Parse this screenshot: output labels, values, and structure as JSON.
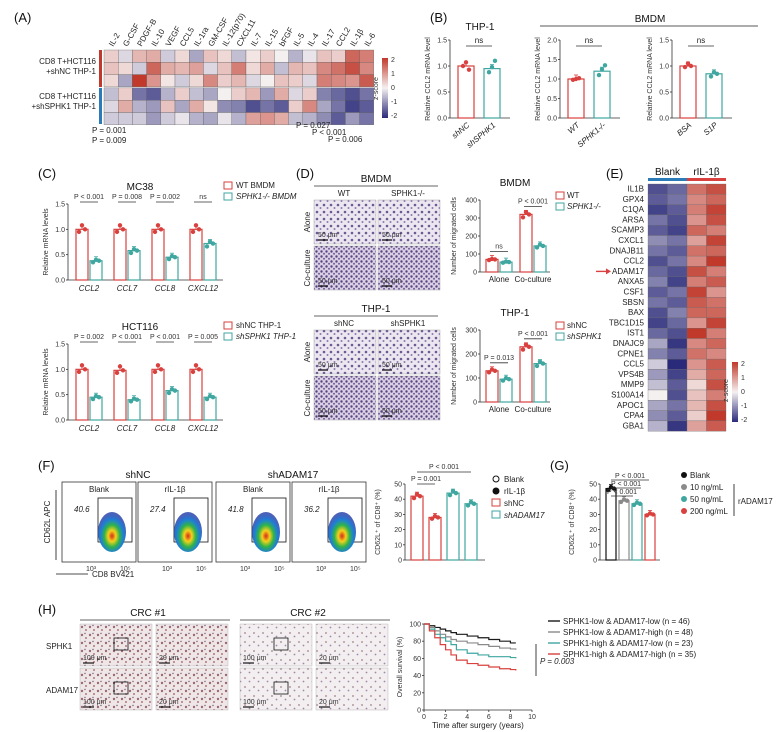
{
  "colors": {
    "red": "#d9413e",
    "teal": "#3fa6a0",
    "hi": "#c0392b",
    "lo": "#2a2a7a",
    "mid": "#f5f0f0",
    "black": "#1a1a1a",
    "gray": "#8a8a8a"
  },
  "panels": {
    "A": {
      "label": "(A)",
      "genes": [
        "IL-2",
        "G-CSF",
        "PDGF-B",
        "IL-10",
        "VEGF",
        "CCL5",
        "IL-1ra",
        "GM-CSF",
        "IL-12(p70)",
        "CXCL11",
        "IL-7",
        "IL-15",
        "bFGF",
        "IL-5",
        "IL-4",
        "IL-17",
        "CCL2",
        "IL-1β",
        "IL-6"
      ],
      "group1": "CD8 T+HCT116 +shNC THP-1",
      "group2": "CD8 T+HCT116 +shSPHK1 THP-1",
      "group1_lines": [
        "CD8 T+HCT116",
        "+shNC THP-1"
      ],
      "group2_lines": [
        "CD8 T+HCT116",
        "+shSPHK1 THP-1"
      ],
      "pvals_left": [
        "P = 0.001",
        "P = 0.009"
      ],
      "pvals_right": [
        "P = 0.027",
        "P < 0.001",
        "P = 0.006"
      ],
      "scale_label": "z-score",
      "scale_ticks": [
        "2",
        "1",
        "0",
        "-1",
        "-2"
      ],
      "z": [
        [
          0.3,
          -0.2,
          0.5,
          0.6,
          -0.3,
          0.2,
          -0.6,
          0.4,
          0.2,
          -0.4,
          0.1,
          0.3,
          0.0,
          -0.5,
          -0.1,
          0.4,
          0.3,
          1.2,
          1.0
        ],
        [
          0.4,
          0.2,
          -0.3,
          1.2,
          0.6,
          0.5,
          0.7,
          -0.2,
          0.4,
          1.0,
          0.2,
          0.6,
          -0.4,
          0.5,
          0.4,
          0.9,
          1.1,
          1.4,
          0.9
        ],
        [
          0.2,
          -0.6,
          1.6,
          0.8,
          0.1,
          -0.3,
          0.2,
          0.9,
          0.3,
          0.5,
          -0.2,
          0.0,
          0.4,
          0.3,
          -0.2,
          1.0,
          0.9,
          0.8,
          1.3
        ],
        [
          -0.4,
          0.3,
          -1.0,
          -1.2,
          -0.5,
          0.3,
          -0.4,
          -0.6,
          0.0,
          0.3,
          0.5,
          -0.7,
          0.6,
          -0.2,
          0.3,
          -0.9,
          -1.1,
          -1.3,
          -1.0
        ],
        [
          -0.2,
          0.6,
          -0.5,
          -0.7,
          0.4,
          -0.6,
          0.6,
          0.1,
          -0.8,
          -0.9,
          -1.3,
          -1.0,
          -1.2,
          0.3,
          0.9,
          -0.6,
          -1.0,
          -1.4,
          -1.2
        ],
        [
          -0.3,
          -0.3,
          -0.3,
          -0.7,
          -0.3,
          -0.1,
          -0.5,
          -0.6,
          -0.1,
          -0.5,
          0.7,
          0.8,
          0.6,
          -0.4,
          -0.5,
          -0.8,
          -1.2,
          -0.7,
          -1.0
        ]
      ]
    },
    "B": {
      "label": "(B)",
      "ylabel": "Relative CCL2 mRNA level",
      "bmdm_label": "BMDM",
      "sub": [
        {
          "title": "THP-1",
          "cats": [
            "shNC",
            "shSPHK1"
          ],
          "values": [
            1.0,
            0.95
          ],
          "points": [
            [
              1.0,
              1.07,
              0.93
            ],
            [
              0.88,
              0.98,
              1.1
            ]
          ],
          "ns": "ns",
          "ticks": [
            "0.0",
            "0.5",
            "1.0",
            "1.5"
          ]
        },
        {
          "title": "",
          "cats": [
            "WT",
            "SPHK1-/-"
          ],
          "values": [
            1.0,
            1.2
          ],
          "points": [
            [
              0.98,
              1.0,
              1.02
            ],
            [
              1.1,
              1.25,
              1.35
            ]
          ],
          "ns": "ns",
          "ticks": [
            "0.0",
            "0.5",
            "1.0",
            "1.5",
            "2.0"
          ]
        },
        {
          "title": "",
          "cats": [
            "BSA",
            "S1P"
          ],
          "values": [
            1.0,
            0.85
          ],
          "points": [
            [
              0.98,
              1.05,
              1.0
            ],
            [
              0.8,
              0.88,
              0.85
            ]
          ],
          "ns": "ns",
          "ticks": [
            "0.0",
            "0.5",
            "1.0",
            "1.5"
          ]
        }
      ]
    },
    "C": {
      "label": "(C)",
      "ylabel": "Relative mRNA levels",
      "cats": [
        "CCL2",
        "CCL7",
        "CCL8",
        "CXCL12"
      ],
      "plots": [
        {
          "title": "MC38",
          "legend": [
            "WT BMDM",
            "SPHK1-/- BMDM"
          ],
          "a": [
            1.0,
            1.0,
            1.0,
            1.0
          ],
          "b": [
            0.38,
            0.58,
            0.45,
            0.72
          ],
          "pvals": [
            "P < 0.001",
            "P = 0.008",
            "P = 0.002",
            "ns"
          ]
        },
        {
          "title": "HCT116",
          "legend": [
            "shNC THP-1",
            "shSPHK1 THP-1"
          ],
          "a": [
            1.0,
            0.98,
            1.0,
            1.0
          ],
          "b": [
            0.45,
            0.4,
            0.58,
            0.45
          ],
          "pvals": [
            "P = 0.002",
            "P < 0.001",
            "P < 0.001",
            "P = 0.005"
          ]
        }
      ],
      "ticks": [
        "0.0",
        "0.5",
        "1.0",
        "1.5"
      ]
    },
    "D": {
      "label": "(D)",
      "top_title": "BMDM",
      "bottom_title": "THP-1",
      "top_cols": [
        "WT",
        "SPHK1-/-"
      ],
      "bottom_cols": [
        "shNC",
        "shSPHK1"
      ],
      "rows": [
        "Alone",
        "Co-culture"
      ],
      "scalebar": "50 μm",
      "ylabel": "Number of migrated cells",
      "cats": [
        "Alone",
        "Co-culture"
      ],
      "top_chart": {
        "title": "BMDM",
        "legend": [
          "WT",
          "SPHK1-/-"
        ],
        "a": [
          70,
          320
        ],
        "b": [
          55,
          145
        ],
        "pvals": [
          "ns",
          "P < 0.001"
        ],
        "ymax": 400,
        "ticks": [
          "0",
          "100",
          "200",
          "300",
          "400"
        ]
      },
      "bottom_chart": {
        "title": "THP-1",
        "legend": [
          "shNC",
          "shSPHK1"
        ],
        "a": [
          130,
          230
        ],
        "b": [
          95,
          160
        ],
        "pvals": [
          "P = 0.013",
          "P < 0.001"
        ],
        "ymax": 300,
        "ticks": [
          "0",
          "100",
          "200",
          "300"
        ]
      }
    },
    "E": {
      "label": "(E)",
      "groups": [
        "Blank",
        "rIL-1β"
      ],
      "genes": [
        "IL1B",
        "GPX4",
        "C1QA",
        "ARSA",
        "SCAMP3",
        "CXCL1",
        "DNAJB11",
        "CCL2",
        "ADAM17",
        "ANXA5",
        "CSF1",
        "SBSN",
        "BAX",
        "TBC1D15",
        "IST1",
        "DNAJC9",
        "CPNE1",
        "CCL5",
        "VPS4B",
        "MMP9",
        "S100A14",
        "APOC1",
        "CPA4",
        "GBA1"
      ],
      "highlight": "ADAM17",
      "scale_label": "z-score",
      "scale_ticks": [
        "2",
        "1",
        "0",
        "-1",
        "-2"
      ],
      "z": [
        [
          -1.3,
          -1.1,
          1.1,
          1.4
        ],
        [
          -1.2,
          -1.0,
          0.9,
          1.2
        ],
        [
          -1.4,
          -1.2,
          1.0,
          1.5
        ],
        [
          -1.0,
          -1.3,
          0.8,
          1.4
        ],
        [
          -1.2,
          -1.4,
          1.2,
          1.0
        ],
        [
          -0.8,
          -1.0,
          0.7,
          1.5
        ],
        [
          -1.0,
          -1.2,
          1.1,
          1.2
        ],
        [
          -1.3,
          -1.0,
          0.9,
          1.6
        ],
        [
          -1.1,
          -1.3,
          1.4,
          1.0
        ],
        [
          -0.9,
          -1.4,
          1.0,
          1.3
        ],
        [
          -1.2,
          -1.0,
          1.5,
          0.8
        ],
        [
          -1.0,
          -1.2,
          1.3,
          1.1
        ],
        [
          -1.3,
          -0.9,
          1.2,
          1.2
        ],
        [
          -1.4,
          -1.1,
          0.8,
          1.5
        ],
        [
          -1.1,
          -1.3,
          1.6,
          1.0
        ],
        [
          -0.6,
          -1.5,
          0.9,
          1.2
        ],
        [
          -0.9,
          -1.2,
          1.1,
          0.9
        ],
        [
          -0.3,
          -1.6,
          0.8,
          1.3
        ],
        [
          -0.7,
          -1.4,
          0.6,
          1.2
        ],
        [
          -0.4,
          -1.2,
          0.2,
          1.4
        ],
        [
          0.0,
          -1.3,
          0.4,
          1.0
        ],
        [
          -0.6,
          -1.0,
          0.5,
          1.4
        ],
        [
          -0.8,
          -1.2,
          0.3,
          1.6
        ],
        [
          -0.5,
          -1.5,
          0.7,
          1.3
        ]
      ]
    },
    "F": {
      "label": "(F)",
      "groups": [
        "shNC",
        "shADAM17"
      ],
      "subs": [
        "Blank",
        "rIL-1β",
        "Blank",
        "rIL-1β"
      ],
      "pcts": [
        "40.6",
        "27.4",
        "41.8",
        "36.2"
      ],
      "ylab_flow": "CD62L APC",
      "xlab_flow": "CD8 BV421",
      "tick10": [
        "10³",
        "10⁵"
      ],
      "chart": {
        "ylabel": "CD62L⁺ of CD8⁺ (%)",
        "values": [
          42,
          28,
          44,
          37
        ],
        "ymax": 50,
        "ticks": [
          "0",
          "10",
          "20",
          "30",
          "40",
          "50"
        ],
        "pvals": [
          "P = 0.001",
          "P < 0.001"
        ],
        "legend": [
          "Blank",
          "rIL-1β",
          "shNC",
          "shADAM17"
        ]
      }
    },
    "G": {
      "label": "(G)",
      "chart": {
        "ylabel": "CD62L⁺ of CD8⁺ (%)",
        "values": [
          47,
          39,
          37,
          30
        ],
        "ymax": 50,
        "ticks": [
          "0",
          "10",
          "20",
          "30",
          "40",
          "50"
        ],
        "pvals": [
          "P < 0.001",
          "P < 0.001",
          "P < 0.001"
        ],
        "legend": [
          "Blank",
          "10 ng/mL",
          "50 ng/mL",
          "200 ng/mL"
        ],
        "group_label": "rADAM17"
      }
    },
    "H": {
      "label": "(H)",
      "cols": [
        "CRC #1",
        "CRC #2"
      ],
      "rows": [
        "SPHK1",
        "ADAM17"
      ],
      "scale_a": "100 μm",
      "scale_b": "20 μm",
      "km": {
        "ylabel": "Overall survival (%)",
        "xlabel": "Time after surgery (years)",
        "xticks": [
          "0",
          "2",
          "4",
          "6",
          "8",
          "10"
        ],
        "yticks": [
          "0",
          "20",
          "40",
          "60",
          "80",
          "100"
        ],
        "pval": "P = 0.003",
        "series": [
          {
            "name": "SPHK1-low & ADAM17-low (n = 46)",
            "color": "#1a1a1a",
            "x": [
              0,
              0.5,
              1,
              1.5,
              2,
              2.5,
              3,
              4,
              5,
              6,
              7,
              8,
              8.5
            ],
            "y": [
              100,
              98,
              96,
              94,
              92,
              90,
              88,
              86,
              84,
              82,
              80,
              78,
              78
            ]
          },
          {
            "name": "SPHK1-low & ADAM17-high (n = 48)",
            "color": "#8a8a8a",
            "x": [
              0,
              0.5,
              1,
              1.5,
              2,
              2.5,
              3,
              4,
              5,
              6,
              7,
              8,
              8.5
            ],
            "y": [
              100,
              96,
              92,
              88,
              85,
              82,
              80,
              78,
              76,
              74,
              72,
              71,
              70
            ]
          },
          {
            "name": "SPHK1-high & ADAM17-low (n = 23)",
            "color": "#3fa6a0",
            "x": [
              0,
              0.5,
              1,
              1.5,
              2,
              2.5,
              3,
              4,
              5,
              6,
              7,
              8,
              8.5
            ],
            "y": [
              100,
              94,
              88,
              84,
              80,
              76,
              70,
              66,
              64,
              62,
              62,
              61,
              60
            ]
          },
          {
            "name": "SPHK1-high & ADAM17-high (n = 35)",
            "color": "#d9413e",
            "x": [
              0,
              0.5,
              1,
              1.5,
              2,
              2.5,
              3,
              4,
              5,
              6,
              7,
              8,
              8.5
            ],
            "y": [
              100,
              92,
              84,
              76,
              70,
              64,
              58,
              54,
              52,
              50,
              48,
              47,
              46
            ]
          }
        ]
      }
    }
  }
}
